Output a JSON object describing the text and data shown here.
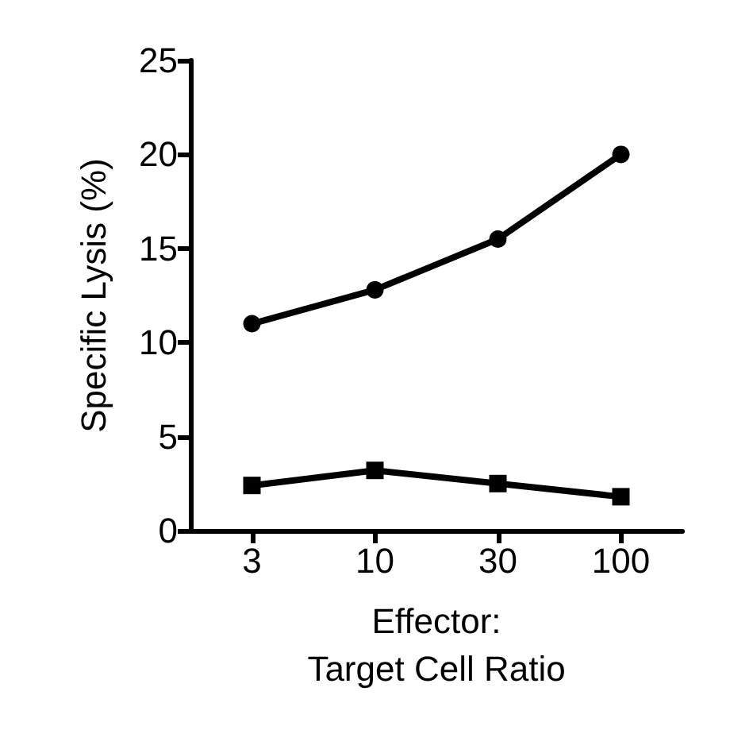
{
  "chart_data": {
    "type": "line",
    "xlabel": "Effector:\nTarget Cell Ratio",
    "ylabel": "Specific Lysis (%)",
    "categories": [
      "3",
      "10",
      "30",
      "100"
    ],
    "series": [
      {
        "color": "#000000",
        "marker": "circle",
        "values": [
          11,
          12.8,
          15.5,
          20
        ]
      },
      {
        "color": "#000000",
        "marker": "square",
        "values": [
          2.4,
          3.2,
          2.5,
          1.8
        ]
      }
    ],
    "ylim": [
      0,
      25
    ],
    "yticks": [
      0,
      5,
      10,
      15,
      20,
      25
    ],
    "grid": false,
    "line_style": "solid"
  }
}
